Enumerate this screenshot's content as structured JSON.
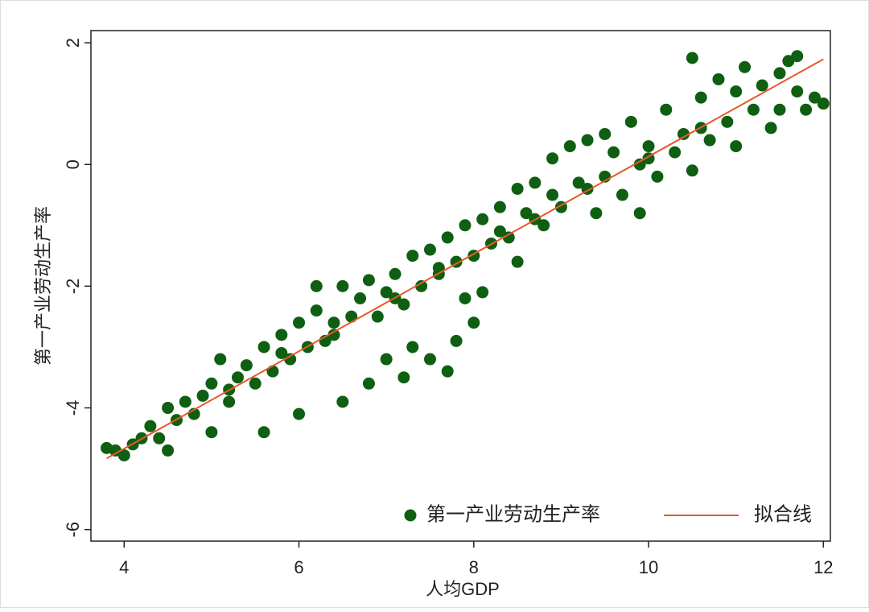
{
  "chart_data": {
    "type": "scatter",
    "xlabel": "人均GDP",
    "ylabel": "第一产业劳动生产率",
    "xlim": [
      3.62,
      12.08
    ],
    "ylim": [
      -6.19,
      2.2
    ],
    "xticks": [
      4,
      6,
      8,
      10,
      12
    ],
    "yticks": [
      -6,
      -4,
      -2,
      0,
      2
    ],
    "legend": "bottom-right",
    "series": [
      {
        "name": "第一产业劳动生产率",
        "color": "#0f5f12",
        "x": [
          3.8,
          3.9,
          4.0,
          4.1,
          4.2,
          4.3,
          4.4,
          4.5,
          4.5,
          4.6,
          4.7,
          4.8,
          4.9,
          5.0,
          5.0,
          5.1,
          5.2,
          5.3,
          5.4,
          5.5,
          5.6,
          5.6,
          5.7,
          5.8,
          5.9,
          6.0,
          6.0,
          6.1,
          6.2,
          6.3,
          6.4,
          6.5,
          6.5,
          6.6,
          6.7,
          6.8,
          6.8,
          6.9,
          7.0,
          7.0,
          7.1,
          7.2,
          7.2,
          7.3,
          7.3,
          7.4,
          7.5,
          7.5,
          7.6,
          7.7,
          7.7,
          7.8,
          7.8,
          7.9,
          8.0,
          8.0,
          8.1,
          8.1,
          8.2,
          8.3,
          8.4,
          8.5,
          8.5,
          8.6,
          8.7,
          8.8,
          8.9,
          8.9,
          9.0,
          9.1,
          9.2,
          9.3,
          9.4,
          9.5,
          9.5,
          9.6,
          9.7,
          9.8,
          9.9,
          9.9,
          10.0,
          10.1,
          10.2,
          10.3,
          10.4,
          10.5,
          10.5,
          10.6,
          10.7,
          10.8,
          10.9,
          11.0,
          11.0,
          11.1,
          11.2,
          11.3,
          11.4,
          11.5,
          11.5,
          11.6,
          11.7,
          11.7,
          11.8,
          11.9,
          12.0,
          6.2,
          7.9,
          5.2,
          5.8,
          6.4,
          7.1,
          7.6,
          8.3,
          8.7,
          9.3,
          10.0,
          10.6
        ],
        "values": [
          -4.66,
          -4.7,
          -4.78,
          -4.6,
          -4.5,
          -4.3,
          -4.5,
          -4.7,
          -4.0,
          -4.2,
          -3.9,
          -4.1,
          -3.8,
          -3.6,
          -4.4,
          -3.2,
          -3.9,
          -3.5,
          -3.3,
          -3.6,
          -3.0,
          -4.4,
          -3.4,
          -2.8,
          -3.2,
          -2.6,
          -4.1,
          -3.0,
          -2.4,
          -2.9,
          -2.6,
          -2.0,
          -3.9,
          -2.5,
          -2.2,
          -1.9,
          -3.6,
          -2.5,
          -2.1,
          -3.2,
          -1.8,
          -2.3,
          -3.5,
          -1.5,
          -3.0,
          -2.0,
          -1.4,
          -3.2,
          -1.8,
          -1.2,
          -3.4,
          -1.6,
          -2.9,
          -1.0,
          -1.5,
          -2.6,
          -0.9,
          -2.1,
          -1.3,
          -0.7,
          -1.2,
          -0.4,
          -1.6,
          -0.8,
          -0.3,
          -1.0,
          0.1,
          -0.5,
          -0.7,
          0.3,
          -0.3,
          0.4,
          -0.8,
          0.5,
          -0.2,
          0.2,
          -0.5,
          0.7,
          0.0,
          -0.8,
          0.3,
          -0.2,
          0.9,
          0.2,
          0.5,
          1.75,
          -0.1,
          1.1,
          0.4,
          1.4,
          0.7,
          1.2,
          0.3,
          1.6,
          0.9,
          1.3,
          0.6,
          1.5,
          0.9,
          1.7,
          1.2,
          1.78,
          0.9,
          1.1,
          1.0,
          -2.0,
          -2.2,
          -3.7,
          -3.1,
          -2.8,
          -2.2,
          -1.7,
          -1.1,
          -0.9,
          -0.4,
          0.1,
          0.6
        ]
      }
    ],
    "fit": {
      "type": "line",
      "name": "拟合线",
      "color": "#e8582a",
      "x": [
        3.8,
        12
      ],
      "values": [
        -4.83,
        1.73
      ]
    }
  }
}
